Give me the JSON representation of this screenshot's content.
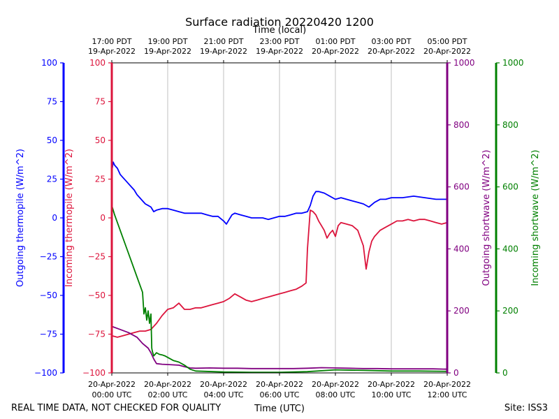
{
  "chart_data": {
    "type": "line",
    "title": "Surface radiation 20220420 1200",
    "xlabel_top": "Time (local)",
    "xlabel_bottom": "Time (UTC)",
    "footer_left": "REAL TIME DATA, NOT CHECKED FOR QUALITY",
    "footer_right": "Site: ISS3",
    "x_range_hours": [
      0,
      12
    ],
    "x_ticks": [
      {
        "h": 0,
        "utc": [
          "20-Apr-2022",
          "00:00 UTC"
        ],
        "local": [
          "17:00 PDT",
          "19-Apr-2022"
        ]
      },
      {
        "h": 2,
        "utc": [
          "20-Apr-2022",
          "02:00 UTC"
        ],
        "local": [
          "19:00 PDT",
          "19-Apr-2022"
        ]
      },
      {
        "h": 4,
        "utc": [
          "20-Apr-2022",
          "04:00 UTC"
        ],
        "local": [
          "21:00 PDT",
          "19-Apr-2022"
        ]
      },
      {
        "h": 6,
        "utc": [
          "20-Apr-2022",
          "06:00 UTC"
        ],
        "local": [
          "23:00 PDT",
          "19-Apr-2022"
        ]
      },
      {
        "h": 8,
        "utc": [
          "20-Apr-2022",
          "08:00 UTC"
        ],
        "local": [
          "01:00 PDT",
          "20-Apr-2022"
        ]
      },
      {
        "h": 10,
        "utc": [
          "20-Apr-2022",
          "10:00 UTC"
        ],
        "local": [
          "03:00 PDT",
          "20-Apr-2022"
        ]
      },
      {
        "h": 12,
        "utc": [
          "20-Apr-2022",
          "12:00 UTC"
        ],
        "local": [
          "05:00 PDT",
          "20-Apr-2022"
        ]
      }
    ],
    "grid": "vertical",
    "axes": [
      {
        "id": "outgoing_thermopile",
        "label": "Outgoing thermopile (W/m^2)",
        "color": "#0000ff",
        "range": [
          -100,
          100
        ],
        "ticks": [
          -100,
          -75,
          -50,
          -25,
          0,
          25,
          50,
          75,
          100
        ]
      },
      {
        "id": "incoming_thermopile",
        "label": "Incoming thermopile (W/m^2)",
        "color": "#dc143c",
        "range": [
          -100,
          100
        ],
        "ticks": [
          -100,
          -75,
          -50,
          -25,
          0,
          25,
          50,
          75,
          100
        ]
      },
      {
        "id": "outgoing_shortwave",
        "label": "Outgoing shortwave (W/m^2)",
        "color": "#800080",
        "range": [
          0,
          1000
        ],
        "ticks": [
          0,
          200,
          400,
          600,
          800,
          1000
        ]
      },
      {
        "id": "incoming_shortwave",
        "label": "Incoming shortwave (W/m^2)",
        "color": "#008000",
        "range": [
          0,
          1000
        ],
        "ticks": [
          0,
          200,
          400,
          600,
          800,
          1000
        ]
      }
    ],
    "series": [
      {
        "axis": "outgoing_thermopile",
        "color": "#0000ff",
        "x": [
          0,
          0.05,
          0.1,
          0.2,
          0.3,
          0.4,
          0.5,
          0.6,
          0.7,
          0.8,
          0.9,
          1.0,
          1.1,
          1.2,
          1.3,
          1.4,
          1.5,
          1.6,
          1.8,
          2.0,
          2.2,
          2.4,
          2.6,
          2.8,
          3.0,
          3.2,
          3.4,
          3.6,
          3.8,
          4.0,
          4.1,
          4.2,
          4.3,
          4.4,
          4.6,
          4.8,
          5.0,
          5.2,
          5.4,
          5.6,
          5.8,
          6.0,
          6.2,
          6.4,
          6.6,
          6.8,
          7.0,
          7.1,
          7.2,
          7.3,
          7.4,
          7.6,
          7.8,
          8.0,
          8.2,
          8.4,
          8.6,
          8.8,
          9.0,
          9.2,
          9.4,
          9.6,
          9.8,
          10.0,
          10.4,
          10.8,
          11.2,
          11.6,
          12.0
        ],
        "y": [
          30,
          36,
          34,
          32,
          28,
          26,
          24,
          22,
          20,
          18,
          15,
          13,
          11,
          9,
          8,
          7,
          4,
          5,
          6,
          6,
          5,
          4,
          3,
          3,
          3,
          3,
          2,
          1,
          1,
          -2,
          -4,
          -1,
          2,
          3,
          2,
          1,
          0,
          0,
          0,
          -1,
          0,
          1,
          1,
          2,
          3,
          3,
          4,
          8,
          14,
          17,
          17,
          16,
          14,
          12,
          13,
          12,
          11,
          10,
          9,
          7,
          10,
          12,
          12,
          13,
          13,
          14,
          13,
          12,
          12
        ]
      },
      {
        "axis": "incoming_thermopile",
        "color": "#dc143c",
        "x": [
          0,
          0.2,
          0.4,
          0.6,
          0.8,
          1.0,
          1.2,
          1.4,
          1.6,
          1.8,
          2.0,
          2.2,
          2.4,
          2.6,
          2.8,
          3.0,
          3.2,
          3.4,
          3.6,
          3.8,
          4.0,
          4.2,
          4.4,
          4.6,
          4.8,
          5.0,
          5.2,
          5.4,
          5.6,
          5.8,
          6.0,
          6.2,
          6.4,
          6.6,
          6.8,
          6.95,
          7.0,
          7.1,
          7.2,
          7.3,
          7.4,
          7.5,
          7.6,
          7.7,
          7.8,
          7.9,
          8.0,
          8.1,
          8.2,
          8.4,
          8.6,
          8.8,
          9.0,
          9.1,
          9.2,
          9.3,
          9.4,
          9.6,
          9.8,
          10.0,
          10.2,
          10.4,
          10.6,
          10.8,
          11.0,
          11.2,
          11.4,
          11.6,
          11.8,
          12.0
        ],
        "y": [
          -76,
          -77,
          -76,
          -75,
          -74,
          -73,
          -73,
          -72,
          -68,
          -63,
          -59,
          -58,
          -55,
          -59,
          -59,
          -58,
          -58,
          -57,
          -56,
          -55,
          -54,
          -52,
          -49,
          -51,
          -53,
          -54,
          -53,
          -52,
          -51,
          -50,
          -49,
          -48,
          -47,
          -46,
          -44,
          -42,
          -20,
          5,
          4,
          2,
          -2,
          -5,
          -8,
          -13,
          -10,
          -8,
          -12,
          -5,
          -3,
          -4,
          -5,
          -8,
          -18,
          -33,
          -22,
          -15,
          -12,
          -8,
          -6,
          -4,
          -2,
          -2,
          -1,
          -2,
          -1,
          -1,
          -2,
          -3,
          -4,
          -3
        ]
      },
      {
        "axis": "outgoing_shortwave",
        "color": "#800080",
        "x": [
          0,
          0.3,
          0.6,
          0.9,
          1.1,
          1.3,
          1.4,
          1.5,
          1.6,
          1.8,
          2.0,
          2.4,
          2.6,
          2.8,
          3.0,
          3.5,
          4.0,
          4.5,
          5.0,
          5.5,
          6.0,
          6.5,
          7.0,
          7.5,
          8.0,
          8.5,
          9.0,
          9.5,
          10.0,
          10.5,
          11.0,
          11.5,
          12.0
        ],
        "y": [
          150,
          140,
          130,
          115,
          95,
          80,
          65,
          45,
          30,
          28,
          27,
          25,
          20,
          16,
          15,
          16,
          15,
          15,
          14,
          14,
          14,
          14,
          15,
          17,
          16,
          15,
          14,
          14,
          13,
          13,
          13,
          13,
          12
        ]
      },
      {
        "axis": "incoming_shortwave",
        "color": "#008000",
        "x": [
          0,
          0.1,
          0.3,
          0.5,
          0.7,
          0.9,
          1.1,
          1.15,
          1.2,
          1.25,
          1.3,
          1.35,
          1.4,
          1.43,
          1.45,
          1.5,
          1.6,
          1.7,
          1.8,
          1.9,
          2.0,
          2.2,
          2.4,
          2.6,
          2.8,
          3.0,
          4.0,
          5.0,
          6.0,
          7.0,
          8.0,
          9.0,
          10.0,
          11.0,
          12.0
        ],
        "y": [
          540,
          510,
          460,
          410,
          360,
          310,
          260,
          190,
          210,
          170,
          200,
          160,
          190,
          80,
          70,
          55,
          65,
          60,
          58,
          55,
          50,
          40,
          35,
          25,
          12,
          6,
          3,
          2,
          2,
          4,
          10,
          8,
          6,
          6,
          5
        ]
      }
    ]
  }
}
